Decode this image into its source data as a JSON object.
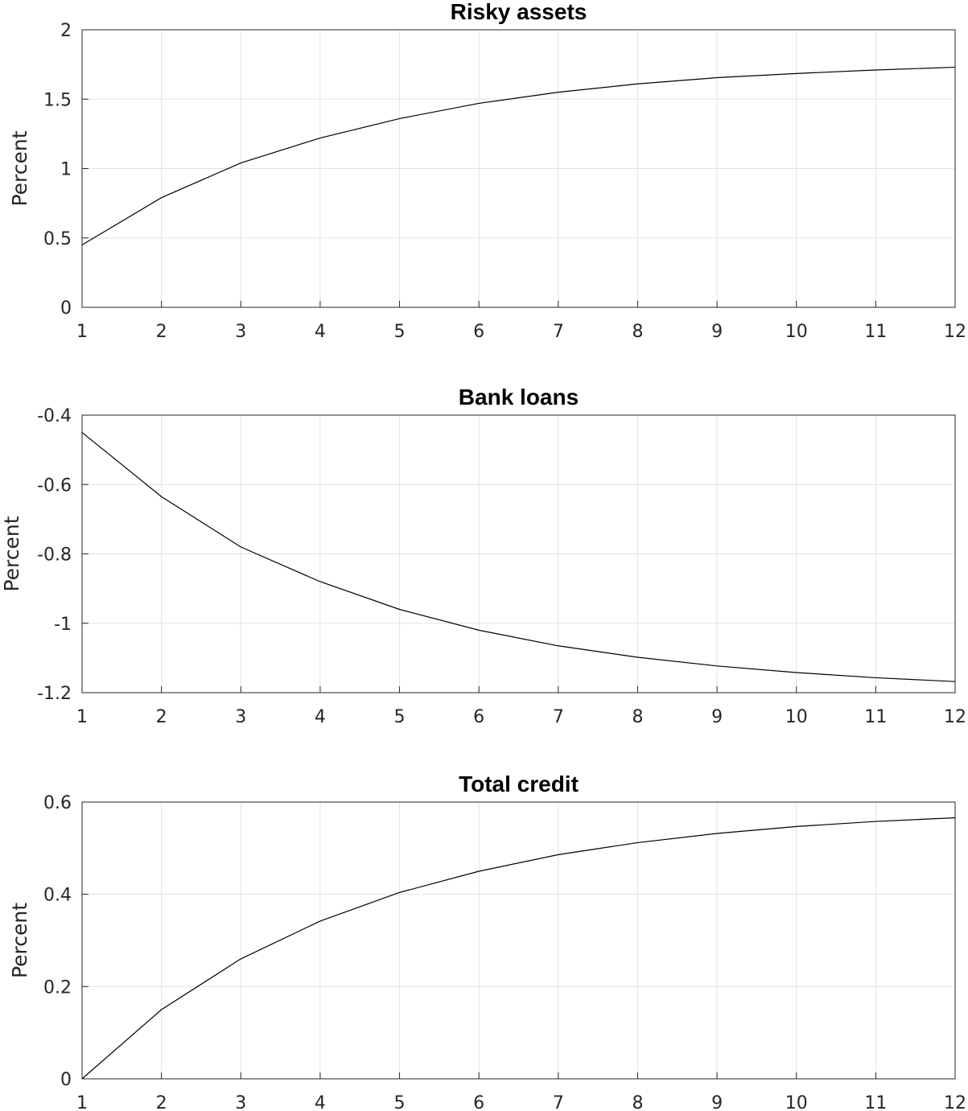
{
  "chart_data": [
    {
      "type": "line",
      "title": "Risky assets",
      "xlabel": "",
      "ylabel": "Percent",
      "x": [
        1,
        2,
        3,
        4,
        5,
        6,
        7,
        8,
        9,
        10,
        11,
        12
      ],
      "xticks": [
        "1",
        "2",
        "3",
        "4",
        "5",
        "6",
        "7",
        "8",
        "9",
        "10",
        "11",
        "12"
      ],
      "yticks": [
        "0",
        "0.5",
        "1",
        "1.5",
        "2"
      ],
      "xlim": [
        1,
        12
      ],
      "ylim": [
        0,
        2
      ],
      "grid": true,
      "series": [
        {
          "values": [
            0.45,
            0.79,
            1.04,
            1.22,
            1.36,
            1.47,
            1.55,
            1.61,
            1.655,
            1.685,
            1.71,
            1.73
          ]
        }
      ]
    },
    {
      "type": "line",
      "title": "Bank loans",
      "xlabel": "",
      "ylabel": "Percent",
      "x": [
        1,
        2,
        3,
        4,
        5,
        6,
        7,
        8,
        9,
        10,
        11,
        12
      ],
      "xticks": [
        "1",
        "2",
        "3",
        "4",
        "5",
        "6",
        "7",
        "8",
        "9",
        "10",
        "11",
        "12"
      ],
      "yticks": [
        "-1.2",
        "-1",
        "-0.8",
        "-0.6",
        "-0.4"
      ],
      "xlim": [
        1,
        12
      ],
      "ylim": [
        -1.2,
        -0.4
      ],
      "grid": true,
      "series": [
        {
          "values": [
            -0.45,
            -0.635,
            -0.78,
            -0.88,
            -0.96,
            -1.02,
            -1.065,
            -1.098,
            -1.123,
            -1.142,
            -1.157,
            -1.168
          ]
        }
      ]
    },
    {
      "type": "line",
      "title": "Total credit",
      "xlabel": "",
      "ylabel": "Percent",
      "x": [
        1,
        2,
        3,
        4,
        5,
        6,
        7,
        8,
        9,
        10,
        11,
        12
      ],
      "xticks": [
        "1",
        "2",
        "3",
        "4",
        "5",
        "6",
        "7",
        "8",
        "9",
        "10",
        "11",
        "12"
      ],
      "yticks": [
        "0",
        "0.2",
        "0.4",
        "0.6"
      ],
      "xlim": [
        1,
        12
      ],
      "ylim": [
        0,
        0.6
      ],
      "grid": true,
      "series": [
        {
          "values": [
            0.0,
            0.15,
            0.26,
            0.342,
            0.404,
            0.45,
            0.486,
            0.512,
            0.532,
            0.547,
            0.558,
            0.566
          ]
        }
      ]
    }
  ]
}
